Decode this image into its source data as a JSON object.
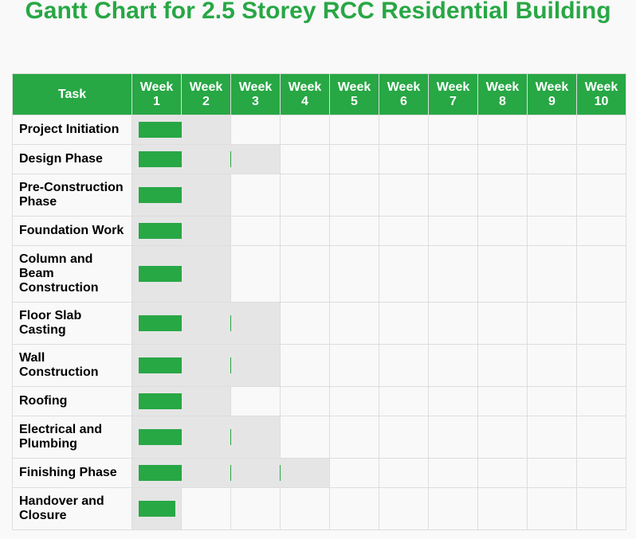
{
  "title": "Gantt Chart for 2.5 Storey RCC Residential Building",
  "colors": {
    "accent": "#28a745",
    "span_bg": "#e5e5e5",
    "row_bg": "#f9f9f9"
  },
  "chart_data": {
    "type": "table",
    "title": "Gantt Chart for 2.5 Storey RCC Residential Building",
    "task_header": "Task",
    "weeks": [
      [
        "Week",
        "1"
      ],
      [
        "Week",
        "2"
      ],
      [
        "Week",
        "3"
      ],
      [
        "Week",
        "4"
      ],
      [
        "Week",
        "5"
      ],
      [
        "Week",
        "6"
      ],
      [
        "Week",
        "7"
      ],
      [
        "Week",
        "8"
      ],
      [
        "Week",
        "9"
      ],
      [
        "Week",
        "10"
      ]
    ],
    "tasks": [
      {
        "name": "Project Initiation",
        "start_week": 1,
        "duration_weeks": 2
      },
      {
        "name": "Design Phase",
        "start_week": 1,
        "duration_weeks": 3
      },
      {
        "name": "Pre-Construction Phase",
        "start_week": 1,
        "duration_weeks": 2
      },
      {
        "name": "Foundation Work",
        "start_week": 1,
        "duration_weeks": 2
      },
      {
        "name": "Column and Beam Construction",
        "start_week": 1,
        "duration_weeks": 2
      },
      {
        "name": "Floor Slab Casting",
        "start_week": 1,
        "duration_weeks": 3
      },
      {
        "name": "Wall Construction",
        "start_week": 1,
        "duration_weeks": 3
      },
      {
        "name": "Roofing",
        "start_week": 1,
        "duration_weeks": 2
      },
      {
        "name": "Electrical and Plumbing",
        "start_week": 1,
        "duration_weeks": 3
      },
      {
        "name": "Finishing Phase",
        "start_week": 1,
        "duration_weeks": 4
      },
      {
        "name": "Handover and Closure",
        "start_week": 1,
        "duration_weeks": 1
      }
    ]
  }
}
